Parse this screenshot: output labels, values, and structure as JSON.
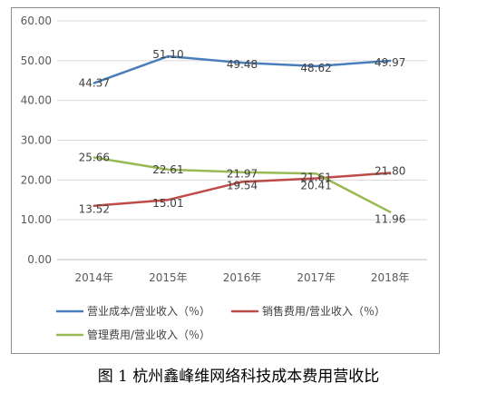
{
  "caption": "图 1 杭州鑫峰维网络科技成本费用营收比",
  "chart_data": {
    "type": "line",
    "title": "",
    "xlabel": "",
    "ylabel": "",
    "categories": [
      "2014年",
      "2015年",
      "2016年",
      "2017年",
      "2018年"
    ],
    "ylim": [
      0,
      60
    ],
    "yticks": [
      "0.00",
      "10.00",
      "20.00",
      "30.00",
      "40.00",
      "50.00",
      "60.00"
    ],
    "grid": true,
    "legend": "bottom",
    "series": [
      {
        "name": "营业成本/营业收入（％）",
        "color": "#4a7ebb",
        "values": [
          44.37,
          51.1,
          49.48,
          48.62,
          49.97
        ],
        "labels": [
          "44.37",
          "51.10",
          "49.48",
          "48.62",
          "49.97"
        ]
      },
      {
        "name": "销售费用/营业收入（％）",
        "color": "#be4b48",
        "values": [
          13.52,
          15.01,
          19.54,
          20.41,
          21.8
        ],
        "labels": [
          "13.52",
          "15.01",
          "19.54",
          "20.41",
          "21.80"
        ]
      },
      {
        "name": "管理费用/营业收入（％）",
        "color": "#98b954",
        "values": [
          25.66,
          22.61,
          21.97,
          21.61,
          11.96
        ],
        "labels": [
          "25.66",
          "22.61",
          "21.97",
          "21.61",
          "11.96"
        ]
      }
    ]
  }
}
